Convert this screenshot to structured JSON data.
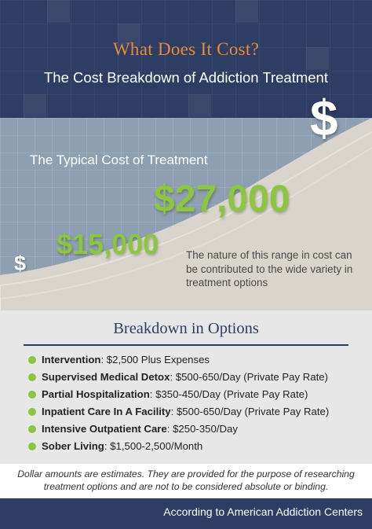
{
  "header": {
    "title": "What Does It Cost?",
    "subtitle": "The Cost Breakdown of Addiction Treatment",
    "accent_color": "#e88a37",
    "background_color": "#2e3d63"
  },
  "cost_panel": {
    "heading": "The Typical Cost of Treatment",
    "icon_large": "$",
    "icon_small": "$",
    "price_low": "$15,000",
    "price_high": "$27,000",
    "price_color": "#8cc63f",
    "note": "The nature of this range in cost can be contributed to the wide variety in treatment options"
  },
  "breakdown": {
    "title": "Breakdown in Options",
    "bullet_color": "#8cc63f",
    "options": [
      {
        "name": "Intervention",
        "detail": ": $2,500 Plus Expenses"
      },
      {
        "name": "Supervised Medical Detox",
        "detail": ": $500-650/Day (Private Pay Rate)"
      },
      {
        "name": "Partial Hospitalization",
        "detail": ": $350-450/Day (Private Pay Rate)"
      },
      {
        "name": "Inpatient Care In A Facility",
        "detail": ": $500-650/Day (Private Pay Rate)"
      },
      {
        "name": "Intensive Outpatient Care",
        "detail": ": $250-350/Day"
      },
      {
        "name": "Sober Living",
        "detail": ": $1,500-2,500/Month"
      }
    ]
  },
  "disclaimer": "Dollar amounts are estimates. They are provided for the purpose of researching treatment options and are not to be considered absolute or binding.",
  "footer": {
    "source": "According to American Addiction Centers"
  }
}
